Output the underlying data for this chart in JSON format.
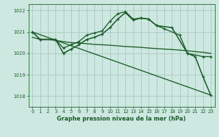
{
  "bg_color": "#cce8e0",
  "grid_color": "#aaccc4",
  "line_color": "#1a5c28",
  "title": "Graphe pression niveau de la mer (hPa)",
  "xlim": [
    -0.5,
    23.5
  ],
  "ylim": [
    1017.5,
    1022.3
  ],
  "yticks": [
    1018,
    1019,
    1020,
    1021,
    1022
  ],
  "xticks": [
    0,
    1,
    2,
    3,
    4,
    5,
    6,
    7,
    8,
    9,
    10,
    11,
    12,
    13,
    14,
    15,
    16,
    17,
    18,
    19,
    20,
    21,
    22,
    23
  ],
  "series": [
    {
      "x": [
        0,
        23
      ],
      "y": [
        1021.0,
        1018.05
      ],
      "marker": false,
      "lw": 1.0
    },
    {
      "x": [
        0,
        1,
        2,
        3,
        4,
        5,
        6,
        7,
        8,
        9,
        10,
        11,
        12,
        13,
        14,
        15,
        16,
        17,
        18,
        19,
        20,
        21,
        22,
        23
      ],
      "y": [
        1020.75,
        1020.65,
        1020.65,
        1020.6,
        1020.55,
        1020.5,
        1020.48,
        1020.45,
        1020.42,
        1020.4,
        1020.38,
        1020.35,
        1020.32,
        1020.3,
        1020.28,
        1020.25,
        1020.22,
        1020.2,
        1020.18,
        1020.15,
        1020.12,
        1020.08,
        1020.05,
        1020.0
      ],
      "marker": false,
      "lw": 1.0
    },
    {
      "x": [
        0,
        1,
        3,
        4,
        5,
        6,
        7,
        8,
        9,
        10,
        11,
        12,
        13,
        14,
        15,
        16,
        17,
        19,
        20,
        22,
        23
      ],
      "y": [
        1021.0,
        1020.65,
        1020.65,
        1020.25,
        1020.4,
        1020.55,
        1020.85,
        1020.95,
        1021.05,
        1021.5,
        1021.85,
        1021.95,
        1021.6,
        1021.65,
        1021.6,
        1021.3,
        1021.15,
        1020.85,
        1020.0,
        1019.85,
        1019.85
      ],
      "marker": true,
      "lw": 1.0
    },
    {
      "x": [
        0,
        1,
        3,
        4,
        5,
        6,
        7,
        8,
        9,
        10,
        11,
        12,
        13,
        14,
        15,
        16,
        18,
        20,
        21,
        22,
        23
      ],
      "y": [
        1021.0,
        1020.65,
        1020.65,
        1020.0,
        1020.2,
        1020.4,
        1020.65,
        1020.75,
        1020.9,
        1021.2,
        1021.6,
        1021.9,
        1021.55,
        1021.65,
        1021.6,
        1021.3,
        1021.2,
        1020.0,
        1019.85,
        1018.9,
        1018.05
      ],
      "marker": true,
      "lw": 1.2
    }
  ]
}
